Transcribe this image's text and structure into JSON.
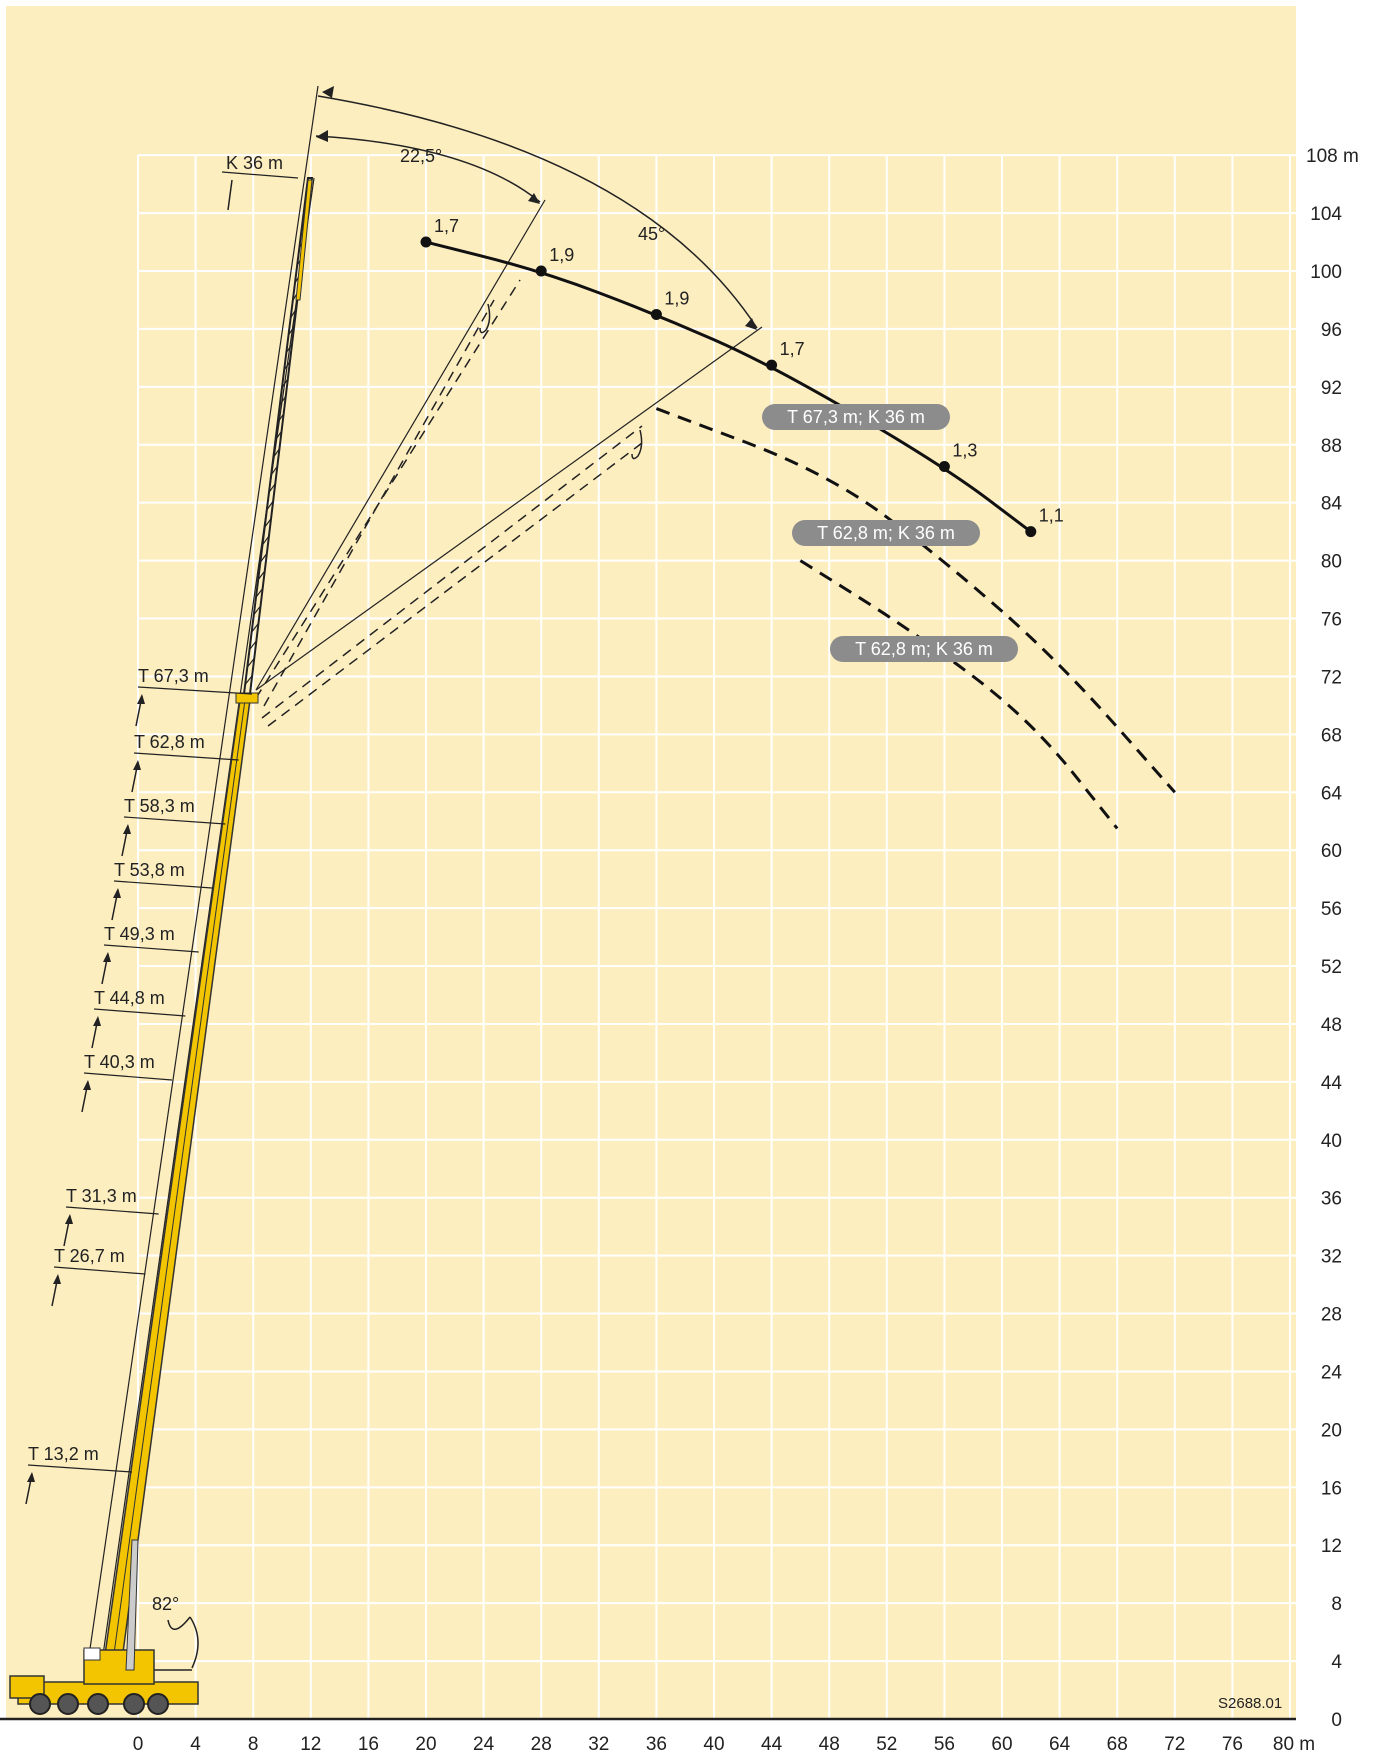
{
  "chart_data": {
    "type": "line",
    "x_ticks": [
      0,
      4,
      8,
      12,
      16,
      20,
      24,
      28,
      32,
      36,
      40,
      44,
      48,
      52,
      56,
      60,
      64,
      68,
      72,
      76
    ],
    "x_unit_label": "80 m",
    "y_ticks": [
      0,
      4,
      8,
      12,
      16,
      20,
      24,
      28,
      32,
      36,
      40,
      44,
      48,
      52,
      56,
      60,
      64,
      68,
      72,
      76,
      80,
      84,
      88,
      92,
      96,
      100,
      104
    ],
    "y_unit_label": "108 m",
    "xlim": [
      0,
      80
    ],
    "ylim": [
      0,
      108
    ],
    "series": [
      {
        "name": "T 67,3 m; K 36 m",
        "style": "solid",
        "points": [
          {
            "x": 20,
            "y": 102,
            "label": "1,7"
          },
          {
            "x": 28,
            "y": 100,
            "label": "1,9"
          },
          {
            "x": 36,
            "y": 97,
            "label": "1,9"
          },
          {
            "x": 44,
            "y": 93.5,
            "label": "1,7"
          },
          {
            "x": 56,
            "y": 86.5,
            "label": "1,3"
          },
          {
            "x": 62,
            "y": 82,
            "label": "1,1"
          }
        ]
      },
      {
        "name": "T 62,8 m; K 36 m",
        "style": "dashed",
        "points": [
          {
            "x": 36,
            "y": 90.5
          },
          {
            "x": 48,
            "y": 86
          },
          {
            "x": 56,
            "y": 80
          },
          {
            "x": 64,
            "y": 73
          },
          {
            "x": 72,
            "y": 64
          }
        ]
      },
      {
        "name": "T 62,8 m; K 36 m",
        "style": "dashed",
        "points": [
          {
            "x": 46,
            "y": 80
          },
          {
            "x": 54,
            "y": 75
          },
          {
            "x": 62,
            "y": 69
          },
          {
            "x": 68,
            "y": 61.5
          }
        ]
      }
    ],
    "boom_labels": [
      "T 13,2 m",
      "T 26,7 m",
      "T 31,3 m",
      "T 40,3 m",
      "T 44,8 m",
      "T 49,3 m",
      "T 53,8 m",
      "T 58,3 m",
      "T 62,8 m",
      "T 67,3 m"
    ],
    "jib_label": "K 36 m",
    "angle_labels": [
      "22,5°",
      "45°",
      "82°"
    ],
    "drawing_code": "S2688.01",
    "colors": {
      "background": "#fdeec0",
      "grid": "#ffffff",
      "boom": "#f2c500",
      "curve": "#111111",
      "pill": "#8c8c8c"
    }
  }
}
